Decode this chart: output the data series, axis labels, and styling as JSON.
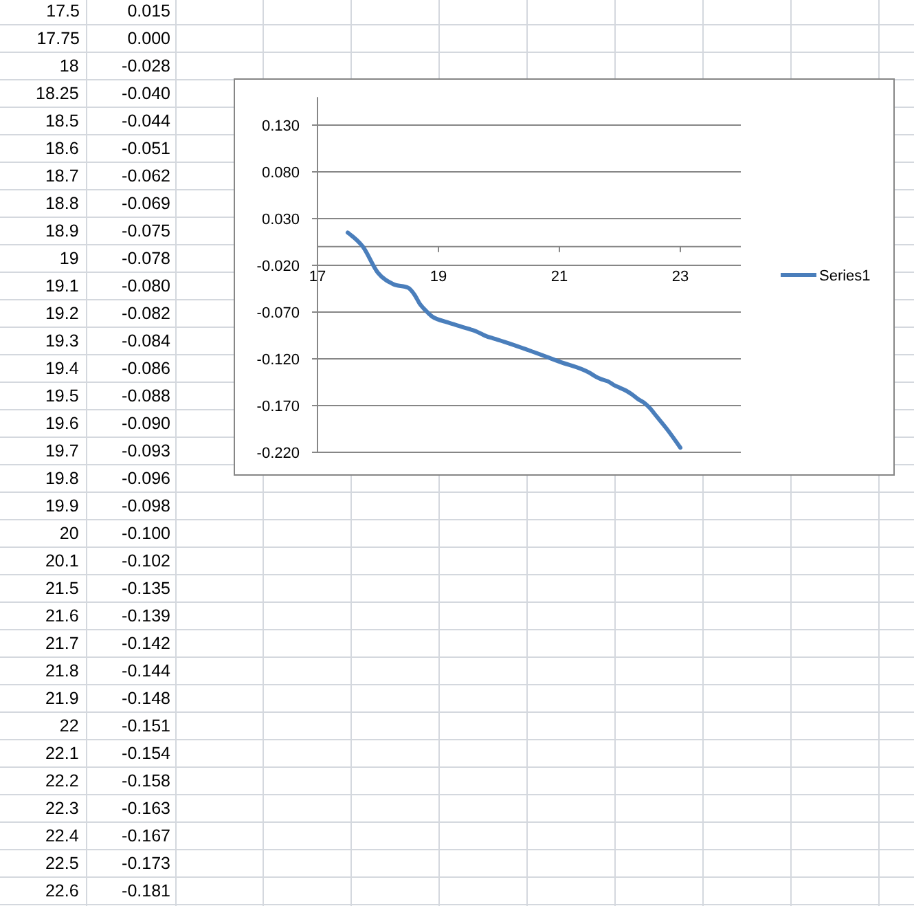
{
  "chart_data": [
    {
      "type": "line",
      "xlim": [
        17,
        24
      ],
      "ylim": [
        -0.22,
        0.16
      ],
      "xticks": [
        17,
        19,
        21,
        23
      ],
      "yticks": [
        {
          "value": 0.13,
          "label": "0.130"
        },
        {
          "value": 0.08,
          "label": "0.080"
        },
        {
          "value": 0.03,
          "label": "0.030"
        },
        {
          "value": -0.02,
          "label": "-0.020"
        },
        {
          "value": -0.07,
          "label": "-0.070"
        },
        {
          "value": -0.12,
          "label": "-0.120"
        },
        {
          "value": -0.17,
          "label": "-0.170"
        },
        {
          "value": -0.22,
          "label": "-0.220"
        }
      ],
      "grid": "y",
      "legend": "right",
      "marker": "none",
      "line_style": "solid",
      "series": [
        {
          "name": "Series1",
          "color": "#4a7ebb",
          "x": [
            17.5,
            17.75,
            18,
            18.25,
            18.5,
            18.6,
            18.7,
            18.8,
            18.9,
            19,
            19.1,
            19.2,
            19.3,
            19.4,
            19.5,
            19.6,
            19.7,
            19.8,
            19.9,
            20,
            20.1,
            20.5,
            21,
            21.5,
            21.6,
            21.7,
            21.8,
            21.9,
            22,
            22.1,
            22.2,
            22.3,
            22.4,
            22.5,
            22.6,
            22.8,
            23
          ],
          "values": [
            0.015,
            0.0,
            -0.028,
            -0.04,
            -0.044,
            -0.051,
            -0.062,
            -0.069,
            -0.075,
            -0.078,
            -0.08,
            -0.082,
            -0.084,
            -0.086,
            -0.088,
            -0.09,
            -0.093,
            -0.096,
            -0.098,
            -0.1,
            -0.102,
            -0.111,
            -0.123,
            -0.135,
            -0.139,
            -0.142,
            -0.144,
            -0.148,
            -0.151,
            -0.154,
            -0.158,
            -0.163,
            -0.167,
            -0.173,
            -0.181,
            -0.197,
            -0.215
          ]
        }
      ]
    },
    {
      "type": "other",
      "annotations": [
        "17.5 0.015",
        "17.75 0.000",
        "18 -0.028",
        "18.25 -0.040",
        "18.5 -0.044",
        "18.6 -0.051",
        "18.7 -0.062",
        "18.8 -0.069",
        "18.9 -0.075",
        "19 -0.078",
        "19.1 -0.080",
        "19.2 -0.082",
        "19.3 -0.084",
        "19.4 -0.086",
        "19.5 -0.088",
        "19.6 -0.090",
        "19.7 -0.093",
        "19.8 -0.096",
        "19.9 -0.098",
        "20 -0.100",
        "20.1 -0.102",
        "21.5 -0.135",
        "21.6 -0.139",
        "21.7 -0.142",
        "21.8 -0.144",
        "21.9 -0.148",
        "22 -0.151",
        "22.1 -0.154",
        "22.2 -0.158",
        "22.3 -0.163",
        "22.4 -0.167",
        "22.5 -0.173",
        "22.6 -0.181"
      ]
    }
  ]
}
